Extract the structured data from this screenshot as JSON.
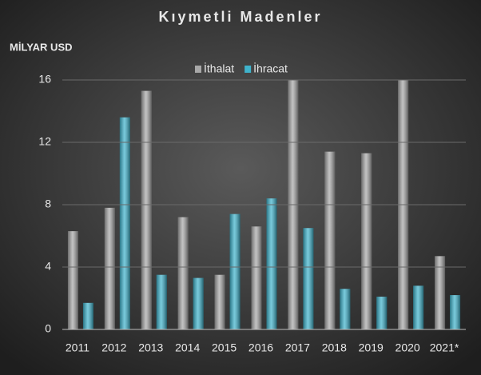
{
  "chart_data": {
    "type": "bar",
    "title": "Kıymetli Madenler",
    "y_label": "MİLYAR USD",
    "categories": [
      "2011",
      "2012",
      "2013",
      "2014",
      "2015",
      "2016",
      "2017",
      "2018",
      "2019",
      "2020",
      "2021*"
    ],
    "series": [
      {
        "name": "İthalat",
        "color": "#a8a8a8",
        "values": [
          6.3,
          7.8,
          15.3,
          7.2,
          3.5,
          6.6,
          16,
          11.4,
          11.3,
          16,
          4.7
        ]
      },
      {
        "name": "İhracat",
        "color": "#3fb3cc",
        "values": [
          1.7,
          13.6,
          3.5,
          3.3,
          7.4,
          8.4,
          6.5,
          2.6,
          2.1,
          2.8,
          2.2
        ]
      }
    ],
    "ylim": [
      0,
      16
    ],
    "yticks": [
      0,
      4,
      8,
      12,
      16
    ],
    "grid": true,
    "legend": "top"
  }
}
